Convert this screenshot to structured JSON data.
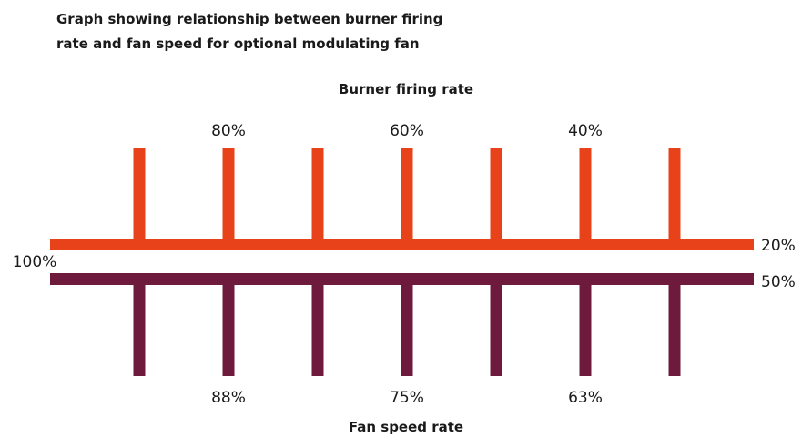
{
  "title_lines": [
    "Graph showing relationship between burner firing",
    "rate and fan speed for optional modulating fan"
  ],
  "chart_data": {
    "type": "diagram-scale",
    "colors": {
      "burner": "#e8421a",
      "fan": "#6e1a3c"
    },
    "tick_count": 7,
    "burner": {
      "title": "Burner firing rate",
      "start_label": "100%",
      "end_label": "20%",
      "tick_labels": [
        "80%",
        "60%",
        "40%"
      ]
    },
    "fan": {
      "title": "Fan speed rate",
      "start_label": "100%",
      "end_label": "50%",
      "tick_labels": [
        "88%",
        "75%",
        "63%"
      ]
    }
  }
}
